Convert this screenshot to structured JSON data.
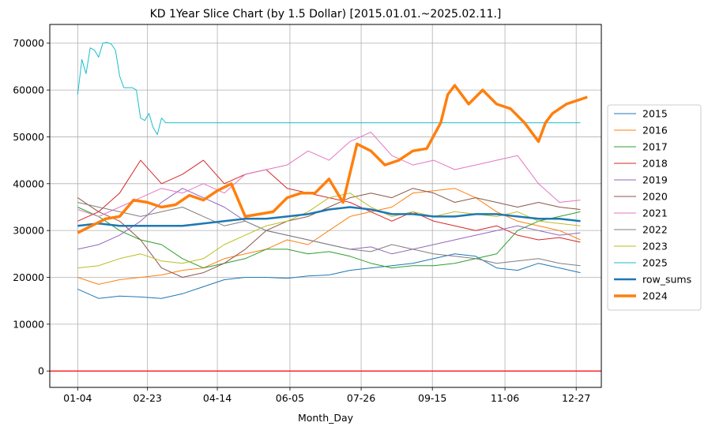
{
  "chart_data": {
    "type": "line",
    "title": "KD 1Year Slice Chart (by 1.5 Dollar) [2015.01.01.~2025.02.11.]",
    "xlabel": "Month_Day",
    "ylabel": "",
    "x_ticks": [
      "01-04",
      "02-23",
      "04-14",
      "06-05",
      "07-26",
      "09-15",
      "11-06",
      "12-27"
    ],
    "y_ticks": [
      "0",
      "10000",
      "20000",
      "30000",
      "40000",
      "50000",
      "60000",
      "70000"
    ],
    "ylim": [
      -3500,
      74000
    ],
    "xlim": [
      -20,
      375
    ],
    "grid": true,
    "legend_position": "outside-right",
    "reference_line": {
      "y": 0,
      "color": "#ff0000"
    },
    "series": [
      {
        "name": "2015",
        "color": "#1f77b4",
        "width": 1,
        "x": [
          0,
          15,
          30,
          45,
          60,
          75,
          90,
          105,
          120,
          135,
          150,
          165,
          180,
          195,
          210,
          225,
          240,
          255,
          270,
          285,
          300,
          315,
          330,
          345,
          360
        ],
        "y": [
          17500,
          15500,
          16000,
          15800,
          15500,
          16500,
          18000,
          19500,
          20000,
          20000,
          19800,
          20300,
          20500,
          21500,
          22000,
          22500,
          23000,
          24000,
          25000,
          24500,
          22000,
          21500,
          23000,
          22000,
          21000
        ]
      },
      {
        "name": "2016",
        "color": "#ff7f0e",
        "width": 1,
        "x": [
          0,
          15,
          30,
          45,
          60,
          75,
          90,
          105,
          120,
          135,
          150,
          165,
          180,
          195,
          210,
          225,
          240,
          255,
          270,
          285,
          300,
          315,
          330,
          345,
          360
        ],
        "y": [
          20000,
          18500,
          19500,
          20000,
          20500,
          21500,
          22000,
          24000,
          25000,
          26000,
          28000,
          27000,
          30000,
          33000,
          34000,
          35000,
          38000,
          38500,
          39000,
          37000,
          34000,
          32000,
          31000,
          30000,
          28000
        ]
      },
      {
        "name": "2017",
        "color": "#2ca02c",
        "width": 1,
        "x": [
          0,
          15,
          30,
          45,
          60,
          75,
          90,
          105,
          120,
          135,
          150,
          165,
          180,
          195,
          210,
          225,
          240,
          255,
          270,
          285,
          300,
          315,
          330,
          345,
          360
        ],
        "y": [
          35000,
          33000,
          30000,
          28000,
          27000,
          24000,
          22000,
          23000,
          24000,
          26000,
          26000,
          25000,
          25500,
          24500,
          23000,
          22000,
          22500,
          22500,
          23000,
          24000,
          25000,
          30000,
          32000,
          33000,
          34000
        ]
      },
      {
        "name": "2018",
        "color": "#d62728",
        "width": 1,
        "x": [
          0,
          15,
          30,
          45,
          60,
          75,
          90,
          105,
          120,
          135,
          150,
          165,
          180,
          195,
          210,
          225,
          240,
          255,
          270,
          285,
          300,
          315,
          330,
          345,
          360
        ],
        "y": [
          32000,
          34000,
          38000,
          45000,
          40000,
          42000,
          45000,
          40000,
          42000,
          43000,
          39000,
          38000,
          37000,
          36000,
          34000,
          32000,
          34000,
          32000,
          31000,
          30000,
          31000,
          29000,
          28000,
          28500,
          27500
        ]
      },
      {
        "name": "2019",
        "color": "#9467bd",
        "width": 1,
        "x": [
          0,
          15,
          30,
          45,
          60,
          75,
          90,
          105,
          120,
          135,
          150,
          165,
          180,
          195,
          210,
          225,
          240,
          255,
          270,
          285,
          300,
          315,
          330,
          345,
          360
        ],
        "y": [
          26000,
          27000,
          29000,
          32000,
          36000,
          39000,
          37000,
          35000,
          32000,
          30000,
          29000,
          28000,
          27000,
          26000,
          26500,
          25000,
          26000,
          27000,
          28000,
          29000,
          30000,
          31000,
          30000,
          29000,
          29500
        ]
      },
      {
        "name": "2020",
        "color": "#8c564b",
        "width": 1,
        "x": [
          0,
          15,
          30,
          45,
          60,
          75,
          90,
          105,
          120,
          135,
          150,
          165,
          180,
          195,
          210,
          225,
          240,
          255,
          270,
          285,
          300,
          315,
          330,
          345,
          360
        ],
        "y": [
          37000,
          34000,
          32000,
          28000,
          22000,
          20000,
          21000,
          23000,
          26000,
          30000,
          32000,
          33000,
          35000,
          37000,
          38000,
          37000,
          39000,
          38000,
          36000,
          37000,
          36000,
          35000,
          36000,
          35000,
          34500
        ]
      },
      {
        "name": "2021",
        "color": "#e377c2",
        "width": 1,
        "x": [
          0,
          15,
          30,
          45,
          60,
          75,
          90,
          105,
          120,
          135,
          150,
          165,
          180,
          195,
          210,
          225,
          240,
          255,
          270,
          285,
          300,
          315,
          330,
          345,
          360
        ],
        "y": [
          34500,
          33000,
          35000,
          37000,
          39000,
          38000,
          40000,
          38000,
          42000,
          43000,
          44000,
          47000,
          45000,
          49000,
          51000,
          46000,
          44000,
          45000,
          43000,
          44000,
          45000,
          46000,
          40000,
          36000,
          36500
        ]
      },
      {
        "name": "2022",
        "color": "#7f7f7f",
        "width": 1,
        "x": [
          0,
          15,
          30,
          45,
          60,
          75,
          90,
          105,
          120,
          135,
          150,
          165,
          180,
          195,
          210,
          225,
          240,
          255,
          270,
          285,
          300,
          315,
          330,
          345,
          360
        ],
        "y": [
          36000,
          35000,
          34000,
          33000,
          34000,
          35000,
          33000,
          31000,
          32000,
          30000,
          29000,
          28000,
          27000,
          26000,
          25500,
          27000,
          26000,
          25000,
          24500,
          24000,
          23000,
          23500,
          24000,
          23000,
          22500
        ]
      },
      {
        "name": "2023",
        "color": "#bcbd22",
        "width": 1,
        "x": [
          0,
          15,
          30,
          45,
          60,
          75,
          90,
          105,
          120,
          135,
          150,
          165,
          180,
          195,
          210,
          225,
          240,
          255,
          270,
          285,
          300,
          315,
          330,
          345,
          360
        ],
        "y": [
          22000,
          22500,
          24000,
          25000,
          23500,
          23000,
          24000,
          27000,
          29000,
          31000,
          32000,
          34000,
          37000,
          38000,
          35000,
          33000,
          34000,
          33000,
          34000,
          33500,
          33000,
          34000,
          32000,
          31500,
          31000
        ]
      },
      {
        "name": "2025",
        "color": "#17becf",
        "width": 1,
        "x": [
          0,
          3,
          6,
          9,
          12,
          15,
          18,
          21,
          24,
          27,
          30,
          33,
          36,
          39,
          42,
          45,
          48,
          51,
          54,
          57,
          60,
          63,
          66,
          69,
          72,
          75,
          120,
          180,
          240,
          300,
          360
        ],
        "y": [
          59000,
          66500,
          63500,
          69000,
          68500,
          67000,
          70000,
          70200,
          69800,
          68500,
          63000,
          60500,
          60500,
          60500,
          60000,
          54000,
          53500,
          55000,
          52000,
          50500,
          54000,
          53000,
          53000,
          53000,
          53000,
          53000,
          53000,
          53000,
          53000,
          53000,
          53000
        ]
      },
      {
        "name": "row_sums",
        "color": "#1f77b4",
        "width": 2.5,
        "x": [
          0,
          15,
          30,
          45,
          60,
          75,
          90,
          105,
          120,
          135,
          150,
          165,
          180,
          195,
          210,
          225,
          240,
          255,
          270,
          285,
          300,
          315,
          330,
          345,
          360
        ],
        "y": [
          31000,
          31500,
          31000,
          31000,
          31000,
          31000,
          31500,
          32000,
          32500,
          32500,
          33000,
          33500,
          34500,
          35000,
          34500,
          33500,
          33500,
          33000,
          33000,
          33500,
          33500,
          33000,
          32500,
          32500,
          32000
        ]
      },
      {
        "name": "2024",
        "color": "#ff7f0e",
        "width": 3.5,
        "x": [
          0,
          10,
          20,
          30,
          40,
          50,
          60,
          70,
          80,
          90,
          100,
          110,
          120,
          130,
          140,
          150,
          160,
          170,
          180,
          190,
          200,
          210,
          220,
          230,
          240,
          250,
          260,
          265,
          270,
          280,
          290,
          300,
          310,
          320,
          330,
          335,
          340,
          350,
          360,
          365
        ],
        "y": [
          29500,
          31000,
          32500,
          33000,
          36500,
          36000,
          35000,
          35500,
          37500,
          36500,
          38500,
          40000,
          33000,
          33500,
          34000,
          37000,
          38000,
          38000,
          41000,
          36000,
          48500,
          47000,
          44000,
          45000,
          47000,
          47500,
          53000,
          59000,
          61000,
          57000,
          60000,
          57000,
          56000,
          53000,
          49000,
          53000,
          55000,
          57000,
          58000,
          58500
        ]
      }
    ]
  }
}
